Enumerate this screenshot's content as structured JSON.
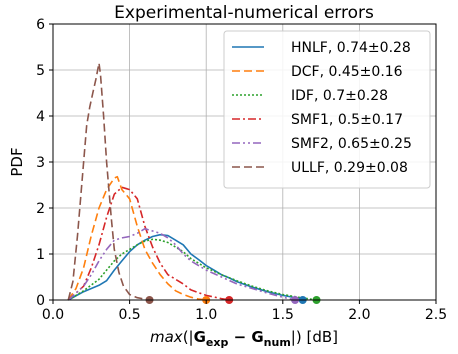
{
  "chart_data": {
    "type": "line",
    "title": "Experimental-numerical errors",
    "ylabel": "PDF",
    "xlabel_parts": {
      "func": "max",
      "open": "(|",
      "a": "G",
      "a_sub": "exp",
      "minus": " − ",
      "b": "G",
      "b_sub": "num",
      "close": "|) [dB]"
    },
    "xlim": [
      0,
      2.5
    ],
    "ylim": [
      0,
      6
    ],
    "xticks": [
      0.0,
      0.5,
      1.0,
      1.5,
      2.0,
      2.5
    ],
    "xtick_labels": [
      "0.0",
      "0.5",
      "1.0",
      "1.5",
      "2.0",
      "2.5"
    ],
    "yticks": [
      0,
      1,
      2,
      3,
      4,
      5,
      6
    ],
    "ytick_labels": [
      "0",
      "1",
      "2",
      "3",
      "4",
      "5",
      "6"
    ],
    "grid": true,
    "legend_position": "top-right",
    "series": [
      {
        "name": "HNLF, 0.74±0.28",
        "color": "#1f77b4",
        "dash": "solid",
        "endpoint": 1.63,
        "x": [
          0.1,
          0.2,
          0.3,
          0.35,
          0.4,
          0.45,
          0.5,
          0.55,
          0.6,
          0.65,
          0.7,
          0.75,
          0.8,
          0.85,
          0.9,
          0.95,
          1.0,
          1.05,
          1.1,
          1.15,
          1.2,
          1.3,
          1.4,
          1.5,
          1.6,
          1.63
        ],
        "y": [
          0.0,
          0.18,
          0.32,
          0.42,
          0.65,
          0.85,
          1.05,
          1.2,
          1.3,
          1.38,
          1.42,
          1.4,
          1.3,
          1.2,
          1.0,
          0.88,
          0.75,
          0.65,
          0.55,
          0.48,
          0.4,
          0.28,
          0.18,
          0.1,
          0.04,
          0.0
        ]
      },
      {
        "name": "DCF, 0.45±0.16",
        "color": "#ff7f0e",
        "dash": "8,4",
        "endpoint": 1.0,
        "x": [
          0.1,
          0.15,
          0.2,
          0.25,
          0.3,
          0.35,
          0.4,
          0.42,
          0.45,
          0.5,
          0.55,
          0.6,
          0.65,
          0.7,
          0.75,
          0.8,
          0.85,
          0.9,
          0.95,
          1.0
        ],
        "y": [
          0.0,
          0.25,
          0.7,
          1.4,
          2.0,
          2.4,
          2.65,
          2.68,
          2.4,
          2.2,
          1.6,
          1.1,
          0.8,
          0.55,
          0.35,
          0.2,
          0.12,
          0.06,
          0.02,
          0.0
        ]
      },
      {
        "name": "IDF, 0.7±0.28",
        "color": "#2ca02c",
        "dash": "2,2",
        "endpoint": 1.72,
        "x": [
          0.1,
          0.2,
          0.3,
          0.35,
          0.4,
          0.45,
          0.5,
          0.55,
          0.6,
          0.65,
          0.7,
          0.75,
          0.8,
          0.85,
          0.9,
          0.95,
          1.0,
          1.1,
          1.2,
          1.3,
          1.4,
          1.5,
          1.6,
          1.72
        ],
        "y": [
          0.0,
          0.2,
          0.45,
          0.65,
          0.85,
          1.0,
          1.1,
          1.2,
          1.28,
          1.32,
          1.3,
          1.25,
          1.15,
          1.05,
          0.9,
          0.8,
          0.7,
          0.55,
          0.42,
          0.3,
          0.2,
          0.12,
          0.06,
          0.0
        ]
      },
      {
        "name": "SMF1, 0.5±0.17",
        "color": "#d62728",
        "dash": "8,3,2,3",
        "endpoint": 1.15,
        "x": [
          0.1,
          0.2,
          0.25,
          0.3,
          0.35,
          0.4,
          0.45,
          0.5,
          0.55,
          0.6,
          0.65,
          0.7,
          0.75,
          0.8,
          0.85,
          0.9,
          1.0,
          1.1,
          1.15
        ],
        "y": [
          0.0,
          0.3,
          0.7,
          1.2,
          1.8,
          2.3,
          2.45,
          2.4,
          2.2,
          1.6,
          1.15,
          0.8,
          0.55,
          0.45,
          0.35,
          0.22,
          0.1,
          0.03,
          0.0
        ]
      },
      {
        "name": "SMF2, 0.65±0.25",
        "color": "#9467bd",
        "dash": "8,3,2,3,2,3",
        "endpoint": 1.58,
        "x": [
          0.1,
          0.2,
          0.25,
          0.3,
          0.35,
          0.4,
          0.45,
          0.5,
          0.55,
          0.6,
          0.65,
          0.7,
          0.75,
          0.8,
          0.85,
          0.9,
          1.0,
          1.1,
          1.2,
          1.3,
          1.4,
          1.5,
          1.58
        ],
        "y": [
          0.0,
          0.3,
          0.55,
          0.85,
          1.1,
          1.3,
          1.35,
          1.38,
          1.45,
          1.55,
          1.5,
          1.45,
          1.35,
          1.2,
          1.0,
          0.85,
          0.65,
          0.5,
          0.35,
          0.25,
          0.15,
          0.06,
          0.0
        ]
      },
      {
        "name": "ULLF, 0.29±0.08",
        "color": "#8c564b",
        "dash": "8,4",
        "endpoint": 0.63,
        "x": [
          0.1,
          0.13,
          0.16,
          0.19,
          0.22,
          0.24,
          0.26,
          0.28,
          0.3,
          0.31,
          0.33,
          0.35,
          0.38,
          0.4,
          0.43,
          0.46,
          0.5,
          0.55,
          0.6,
          0.63
        ],
        "y": [
          0.0,
          0.4,
          1.4,
          2.6,
          3.8,
          4.2,
          4.5,
          4.8,
          5.15,
          4.9,
          4.0,
          3.0,
          1.8,
          1.1,
          0.6,
          0.3,
          0.12,
          0.05,
          0.02,
          0.0
        ]
      }
    ]
  }
}
